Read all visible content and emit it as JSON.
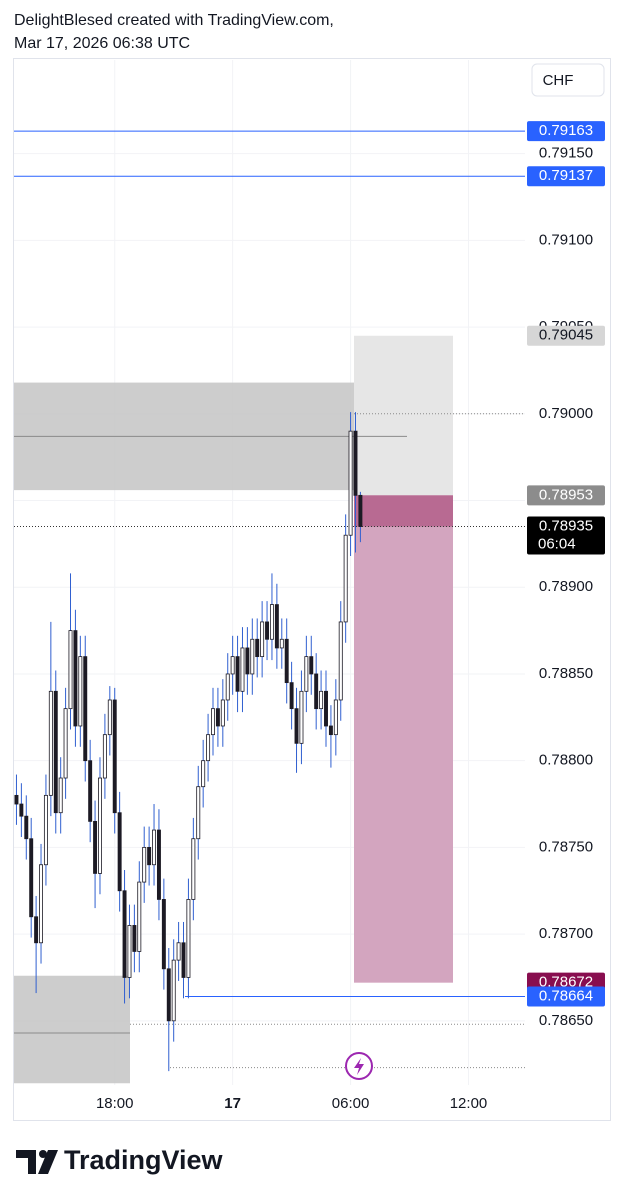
{
  "chart_data": {
    "type": "candlestick",
    "title": "DelightBlesed created with TradingView.com,",
    "subtitle": "Mar 17, 2026 06:38 UTC",
    "currency": "CHF",
    "brand": "TradingView",
    "categories": [
      null,
      null,
      null,
      null,
      null,
      null,
      null,
      null,
      null,
      null,
      null,
      null,
      null,
      null,
      null,
      null,
      null,
      null,
      null,
      null,
      "18:00",
      null,
      null,
      null,
      null,
      null,
      null,
      null,
      null,
      null,
      null,
      null,
      null,
      null,
      null,
      null,
      null,
      null,
      null,
      null,
      null,
      null,
      null,
      null,
      "17",
      null,
      null,
      null,
      null,
      null,
      null,
      null,
      null,
      null,
      null,
      null,
      null,
      null,
      null,
      null,
      null,
      null,
      null,
      null,
      null,
      null,
      null,
      null,
      "06:00",
      null,
      null,
      null,
      null,
      null,
      null,
      null,
      null,
      null,
      null,
      null,
      null,
      null,
      null,
      null,
      null,
      null,
      null,
      null,
      null,
      null,
      null,
      null,
      "12:00",
      null,
      null,
      null,
      null,
      null,
      null,
      null,
      null,
      null,
      null,
      null
    ],
    "open": [
      0.7878,
      0.78775,
      0.78768,
      0.78755,
      0.7871,
      0.78695,
      0.7874,
      0.7878,
      0.7884,
      0.7877,
      0.7879,
      0.7883,
      0.78875,
      0.7882,
      0.7886,
      0.788,
      0.78765,
      0.78735,
      0.7879,
      0.78815,
      0.78835,
      0.7877,
      0.78725,
      0.78675,
      0.78705,
      0.7869,
      0.7873,
      0.7875,
      0.7874,
      0.7876,
      0.7872,
      0.7868,
      0.7865,
      0.78685,
      0.78695,
      0.78675,
      0.7872,
      0.78755,
      0.78785,
      0.788,
      0.78815,
      0.7883,
      0.7882,
      0.78835,
      0.7885,
      0.7886,
      0.7884,
      0.78865,
      0.7885,
      0.7887,
      0.7886,
      0.7888,
      0.7887,
      0.7889,
      0.78865,
      0.7887,
      0.78845,
      0.7883,
      0.7881,
      0.7884,
      0.7886,
      0.7885,
      0.7883,
      0.7884,
      0.7882,
      0.78815,
      0.78835,
      0.7888,
      0.7893,
      0.7899,
      0.78953,
      null,
      null,
      null,
      null,
      null,
      null,
      null,
      null,
      null,
      null,
      null,
      null,
      null,
      null,
      null,
      null,
      null,
      null,
      null,
      null,
      null,
      null,
      null,
      null,
      null,
      null,
      null,
      null,
      null,
      null,
      null,
      null,
      null
    ],
    "high": [
      0.78792,
      0.78787,
      0.7878,
      0.78767,
      0.78722,
      0.78752,
      0.78792,
      0.7888,
      0.78852,
      0.78802,
      0.78842,
      0.78908,
      0.78887,
      0.78872,
      0.78872,
      0.78812,
      0.78777,
      0.78802,
      0.78827,
      0.78843,
      0.78842,
      0.78782,
      0.78737,
      0.78717,
      0.78717,
      0.78742,
      0.78762,
      0.78762,
      0.78775,
      0.78772,
      0.78732,
      0.78692,
      0.78697,
      0.78707,
      0.78707,
      0.78732,
      0.78767,
      0.78797,
      0.78812,
      0.78827,
      0.78842,
      0.78842,
      0.78847,
      0.78862,
      0.78872,
      0.78872,
      0.78877,
      0.78877,
      0.78882,
      0.78882,
      0.78892,
      0.78892,
      0.78908,
      0.78902,
      0.78882,
      0.78882,
      0.78857,
      0.78842,
      0.78852,
      0.78872,
      0.78872,
      0.78862,
      0.78852,
      0.78852,
      0.78832,
      0.78847,
      0.78892,
      0.78942,
      0.79001,
      0.79001,
      0.78955,
      null,
      null,
      null,
      null,
      null,
      null,
      null,
      null,
      null,
      null,
      null,
      null,
      null,
      null,
      null,
      null,
      null,
      null,
      null,
      null,
      null,
      null,
      null,
      null,
      null,
      null,
      null,
      null,
      null,
      null,
      null,
      null,
      null
    ],
    "low": [
      0.78763,
      0.78756,
      0.78743,
      0.78698,
      0.78666,
      0.78683,
      0.78728,
      0.78768,
      0.78758,
      0.78758,
      0.78778,
      0.78818,
      0.78808,
      0.78808,
      0.78788,
      0.78753,
      0.78715,
      0.78723,
      0.78778,
      0.78803,
      0.78758,
      0.78713,
      0.7866,
      0.78663,
      0.78678,
      0.78678,
      0.78718,
      0.78728,
      0.78728,
      0.78708,
      0.78668,
      0.78621,
      0.78638,
      0.78673,
      0.78663,
      0.78663,
      0.78708,
      0.78743,
      0.78773,
      0.78788,
      0.78803,
      0.78808,
      0.78808,
      0.78823,
      0.78838,
      0.78828,
      0.78828,
      0.78838,
      0.78838,
      0.78848,
      0.78848,
      0.78858,
      0.78858,
      0.78853,
      0.78853,
      0.78833,
      0.78818,
      0.78793,
      0.78798,
      0.78828,
      0.78838,
      0.78818,
      0.78818,
      0.78808,
      0.78796,
      0.78803,
      0.78823,
      0.78868,
      0.78918,
      0.7892,
      0.78926,
      null,
      null,
      null,
      null,
      null,
      null,
      null,
      null,
      null,
      null,
      null,
      null,
      null,
      null,
      null,
      null,
      null,
      null,
      null,
      null,
      null,
      null,
      null,
      null,
      null,
      null,
      null,
      null,
      null,
      null,
      null,
      null,
      null
    ],
    "close": [
      0.78775,
      0.78768,
      0.78755,
      0.7871,
      0.78695,
      0.7874,
      0.7878,
      0.7884,
      0.7877,
      0.7879,
      0.7883,
      0.78875,
      0.7882,
      0.7886,
      0.788,
      0.78765,
      0.78735,
      0.7879,
      0.78815,
      0.78835,
      0.7877,
      0.78725,
      0.78675,
      0.78705,
      0.7869,
      0.7873,
      0.7875,
      0.7874,
      0.7876,
      0.7872,
      0.7868,
      0.7865,
      0.78685,
      0.78695,
      0.78675,
      0.7872,
      0.78755,
      0.78785,
      0.788,
      0.78815,
      0.7883,
      0.7882,
      0.78835,
      0.7885,
      0.7886,
      0.7884,
      0.78865,
      0.7885,
      0.7887,
      0.7886,
      0.7888,
      0.7887,
      0.7889,
      0.78865,
      0.7887,
      0.78845,
      0.7883,
      0.7881,
      0.7884,
      0.7886,
      0.7885,
      0.7883,
      0.7884,
      0.7882,
      0.78815,
      0.78835,
      0.7888,
      0.7893,
      0.7899,
      0.78953,
      0.78935,
      null,
      null,
      null,
      null,
      null,
      null,
      null,
      null,
      null,
      null,
      null,
      null,
      null,
      null,
      null,
      null,
      null,
      null,
      null,
      null,
      null,
      null,
      null,
      null,
      null,
      null,
      null,
      null,
      null,
      null,
      null,
      null,
      null
    ],
    "up_color": "#ffffff",
    "down_color": "#1c1a24",
    "body_stroke": "#1c1a24",
    "wick_color": "#2f5fd0",
    "ylim": [
      0.78613,
      0.79204
    ],
    "yticks": [
      {
        "value": 0.7915,
        "label": "0.79150"
      },
      {
        "value": 0.791,
        "label": "0.79100"
      },
      {
        "value": 0.7905,
        "label": "0.79050"
      },
      {
        "value": 0.79,
        "label": "0.79000"
      },
      {
        "value": 0.7895,
        "label": "0.78950"
      },
      {
        "value": 0.789,
        "label": "0.78900"
      },
      {
        "value": 0.7885,
        "label": "0.78850"
      },
      {
        "value": 0.788,
        "label": "0.78800"
      },
      {
        "value": 0.7875,
        "label": "0.78750"
      },
      {
        "value": 0.787,
        "label": "0.78700"
      },
      {
        "value": 0.7865,
        "label": "0.78650"
      }
    ],
    "grid": true,
    "zones": [
      {
        "top": 0.79018,
        "bottom": 0.78956,
        "color": "#c4c4c4"
      },
      {
        "top": 0.78676,
        "bottom": 0.78614,
        "color": "#c4c4c4"
      },
      {
        "top": 0.79045,
        "bottom": 0.78953,
        "color": "#e6e6e6"
      },
      {
        "top": 0.78953,
        "bottom": 0.78672,
        "color": "#d3a5bf"
      },
      {
        "top": 0.78953,
        "bottom": 0.78935,
        "color": "#b86a92"
      }
    ],
    "lines": [
      {
        "value": 0.79163,
        "color": "#2962ff",
        "style": "solid"
      },
      {
        "value": 0.79137,
        "color": "#2962ff",
        "style": "solid"
      },
      {
        "value": 0.78664,
        "color": "#2962ff",
        "style": "solid"
      },
      {
        "value": 0.79,
        "color": "#8a8a8a",
        "style": "dotted"
      },
      {
        "value": 0.78935,
        "color": "#333333",
        "style": "dotted"
      },
      {
        "value": 0.78987,
        "color": "#8a8a8a",
        "style": "solid"
      },
      {
        "value": 0.78643,
        "color": "#8a8a8a",
        "style": "solid"
      },
      {
        "value": 0.78648,
        "color": "#8a8a8a",
        "style": "dotted"
      },
      {
        "value": 0.78623,
        "color": "#8a8a8a",
        "style": "dotted"
      }
    ],
    "price_labels": [
      {
        "value": 0.79163,
        "color": "#2962ff",
        "text_color": "#ffffff"
      },
      {
        "value": 0.79137,
        "color": "#2962ff",
        "text_color": "#ffffff"
      },
      {
        "value": 0.79045,
        "color": "#d6d6d6",
        "text_color": "#131722"
      },
      {
        "value": 0.78953,
        "color": "#8c8c8c",
        "text_color": "#ffffff"
      },
      {
        "value": 0.78935,
        "color": "#000000",
        "text_color": "#ffffff",
        "countdown": "06:04"
      },
      {
        "value": 0.78672,
        "color": "#880e4f",
        "text_color": "#ffffff"
      },
      {
        "value": 0.78664,
        "color": "#2962ff",
        "text_color": "#ffffff"
      }
    ]
  }
}
